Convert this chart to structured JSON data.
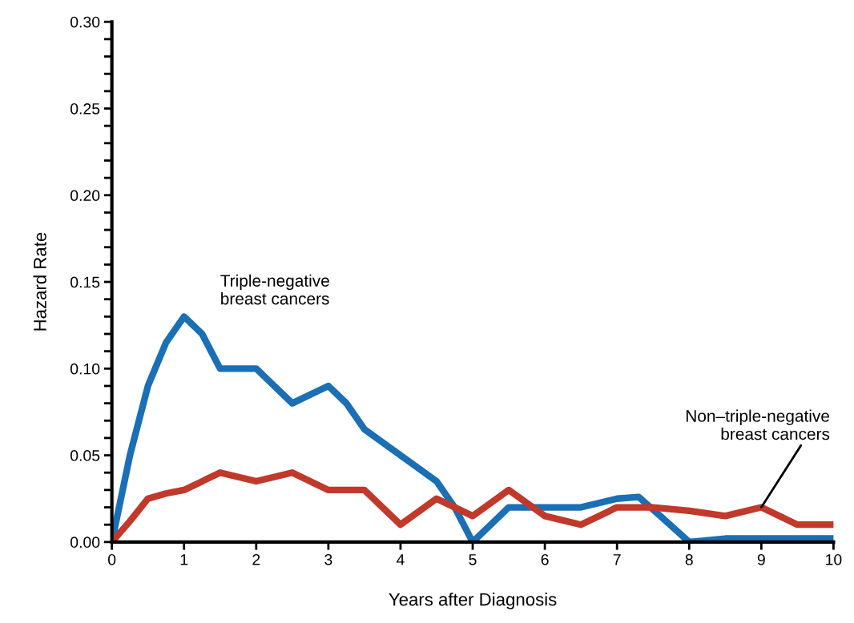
{
  "chart_data": {
    "type": "line",
    "xlabel": "Years after Diagnosis",
    "ylabel": "Hazard Rate",
    "xlim": [
      0,
      10
    ],
    "xticks": [
      0,
      1,
      2,
      3,
      4,
      5,
      6,
      7,
      8,
      9,
      10
    ],
    "ylim": [
      0,
      0.3
    ],
    "yticks": [
      {
        "value": 0,
        "label": "0.00"
      },
      {
        "value": 0.01,
        "label": null
      },
      {
        "value": 0.02,
        "label": null
      },
      {
        "value": 0.03,
        "label": null
      },
      {
        "value": 0.04,
        "label": null
      },
      {
        "value": 0.05,
        "label": "0.05"
      },
      {
        "value": 0.06,
        "label": null
      },
      {
        "value": 0.07,
        "label": null
      },
      {
        "value": 0.08,
        "label": null
      },
      {
        "value": 0.09,
        "label": null
      },
      {
        "value": 0.1,
        "label": "0.10"
      },
      {
        "value": 0.11,
        "label": null
      },
      {
        "value": 0.12,
        "label": null
      },
      {
        "value": 0.13,
        "label": null
      },
      {
        "value": 0.14,
        "label": null
      },
      {
        "value": 0.15,
        "label": "0.15"
      },
      {
        "value": 0.16,
        "label": null
      },
      {
        "value": 0.17,
        "label": null
      },
      {
        "value": 0.18,
        "label": null
      },
      {
        "value": 0.19,
        "label": null
      },
      {
        "value": 0.2,
        "label": "0.20"
      },
      {
        "value": 0.21,
        "label": null
      },
      {
        "value": 0.22,
        "label": null
      },
      {
        "value": 0.23,
        "label": null
      },
      {
        "value": 0.24,
        "label": null
      },
      {
        "value": 0.25,
        "label": "0.25"
      },
      {
        "value": 0.26,
        "label": null
      },
      {
        "value": 0.27,
        "label": null
      },
      {
        "value": 0.28,
        "label": null
      },
      {
        "value": 0.29,
        "label": null
      },
      {
        "value": 0.3,
        "label": "0.30"
      }
    ],
    "grid": false,
    "legend": false,
    "marker": "none",
    "line_style": "solid",
    "series": [
      {
        "name": "Triple-negative\nbreast cancers",
        "color": "#1a6fb5",
        "x": [
          0,
          0.25,
          0.5,
          0.75,
          1,
          1.25,
          1.5,
          2,
          2.25,
          2.5,
          2.75,
          3,
          3.25,
          3.5,
          4,
          4.5,
          4.75,
          5,
          5.25,
          5.5,
          6,
          6.5,
          7,
          7.3,
          7.6,
          8,
          8.5,
          9,
          10
        ],
        "values": [
          0,
          0.05,
          0.09,
          0.115,
          0.13,
          0.12,
          0.1,
          0.1,
          0.09,
          0.08,
          0.085,
          0.09,
          0.08,
          0.065,
          0.05,
          0.035,
          0.02,
          0,
          0.01,
          0.02,
          0.02,
          0.02,
          0.025,
          0.026,
          0.015,
          0,
          0.002,
          0.002,
          0.002
        ]
      },
      {
        "name": "Non–triple-negative\nbreast cancers",
        "color": "#c0392b",
        "x": [
          0,
          0.25,
          0.5,
          0.75,
          1,
          1.5,
          2,
          2.5,
          3,
          3.5,
          4,
          4.5,
          5,
          5.5,
          6,
          6.5,
          7,
          7.5,
          8,
          8.5,
          9,
          9.5,
          10
        ],
        "values": [
          0,
          0.012,
          0.025,
          0.028,
          0.03,
          0.04,
          0.035,
          0.04,
          0.03,
          0.03,
          0.01,
          0.025,
          0.015,
          0.03,
          0.015,
          0.01,
          0.02,
          0.02,
          0.018,
          0.015,
          0.02,
          0.01,
          0.01
        ]
      }
    ]
  }
}
